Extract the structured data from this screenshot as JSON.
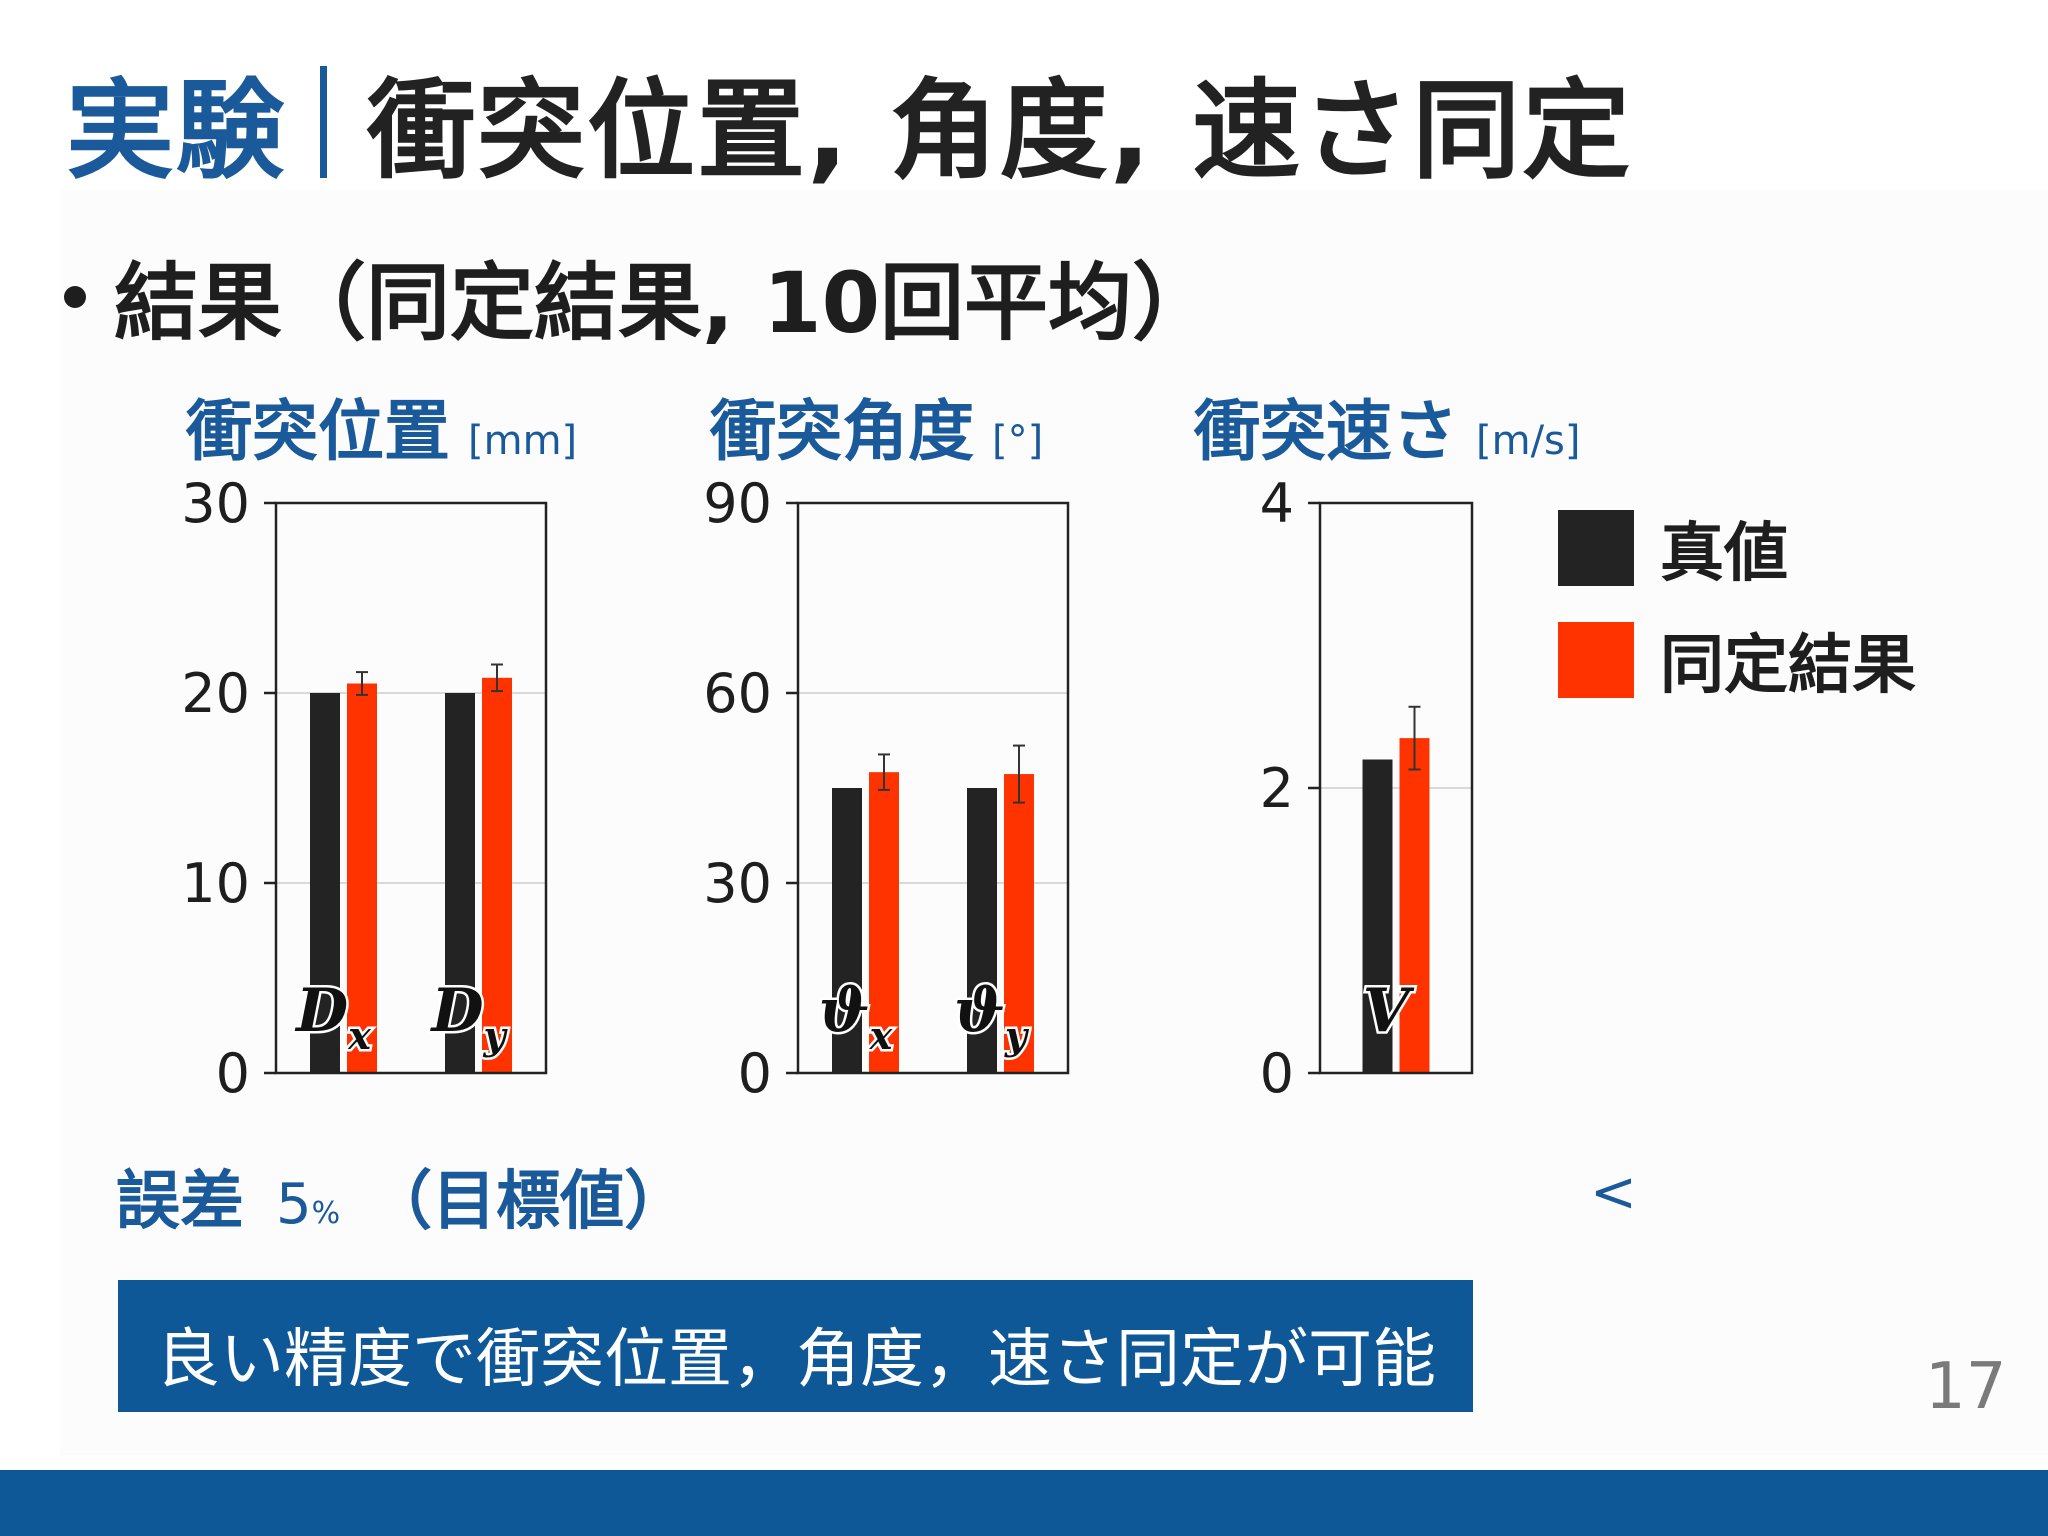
{
  "slide": {
    "title_accent": "実験",
    "title_main": "衝突位置, 角度, 速さ同定",
    "bullet": "結果（同定結果, 10回平均）",
    "error_label": "誤差",
    "error_value": "5",
    "error_unit": "%",
    "error_note": "（目標値）",
    "lt_symbol": "<",
    "conclusion": "良い精度で衝突位置，角度，速さ同定が可能",
    "page_number": "17"
  },
  "legend": [
    {
      "label": "真値",
      "color": "#232323"
    },
    {
      "label": "同定結果",
      "color": "#ff3300"
    }
  ],
  "colors": {
    "true_value": "#232323",
    "identified": "#ff3300",
    "accent": "#1a5a9a",
    "footer": "#0f5898"
  },
  "chart_data": [
    {
      "type": "bar",
      "title": "衝突位置",
      "unit": "[mm]",
      "categories": [
        {
          "sym": "D",
          "sub": "x"
        },
        {
          "sym": "D",
          "sub": "y"
        }
      ],
      "series": [
        {
          "name": "真値",
          "values": [
            20,
            20
          ]
        },
        {
          "name": "同定結果",
          "values": [
            20.5,
            20.8
          ],
          "errors": [
            0.6,
            0.7
          ]
        }
      ],
      "ylim": [
        0,
        30
      ],
      "yticks": [
        0,
        10,
        20,
        30
      ],
      "grid": true
    },
    {
      "type": "bar",
      "title": "衝突角度",
      "unit": "[°]",
      "categories": [
        {
          "sym": "ϑ",
          "sub": "x"
        },
        {
          "sym": "ϑ",
          "sub": "y"
        }
      ],
      "series": [
        {
          "name": "真値",
          "values": [
            45,
            45
          ]
        },
        {
          "name": "同定結果",
          "values": [
            47.5,
            47.2
          ],
          "errors": [
            2.8,
            4.5
          ]
        }
      ],
      "ylim": [
        0,
        90
      ],
      "yticks": [
        0,
        30,
        60,
        90
      ],
      "grid": true
    },
    {
      "type": "bar",
      "title": "衝突速さ",
      "unit": "[m/s]",
      "categories": [
        {
          "sym": "V",
          "sub": ""
        }
      ],
      "series": [
        {
          "name": "真値",
          "values": [
            2.2
          ]
        },
        {
          "name": "同定結果",
          "values": [
            2.35
          ],
          "errors": [
            0.22
          ]
        }
      ],
      "ylim": [
        0,
        4
      ],
      "yticks": [
        0,
        2,
        4
      ],
      "grid": true
    }
  ]
}
